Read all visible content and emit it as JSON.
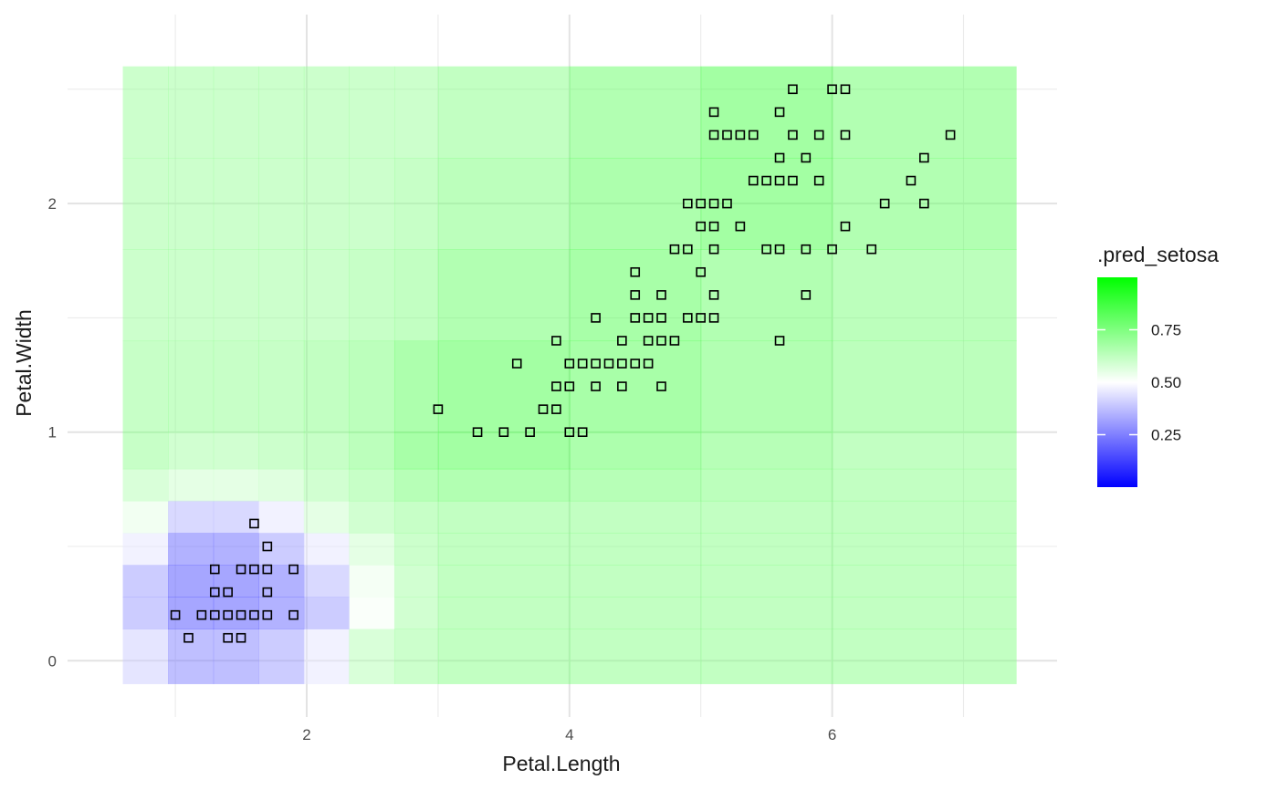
{
  "chart_data": {
    "type": "heatmap",
    "xlabel": "Petal.Length",
    "ylabel": "Petal.Width",
    "x_ticks": [
      2,
      4,
      6
    ],
    "y_ticks": [
      0,
      1,
      2
    ],
    "xlim": [
      0.53,
      7.47
    ],
    "ylim": [
      -0.19,
      2.68
    ],
    "grid": true,
    "legend": {
      "title": ".pred_setosa",
      "position": "right",
      "ticks": [
        0.25,
        0.5,
        0.75
      ],
      "tick_labels": [
        "0.25",
        "0.50",
        "0.75"
      ],
      "range": [
        0.0,
        1.0
      ],
      "colors": {
        "low": "#0000ff",
        "mid": "#ffffff",
        "high": "#00ff00"
      }
    },
    "grid_cells": {
      "x_breaks": [
        0.6,
        0.944,
        1.289,
        1.633,
        1.978,
        2.322,
        2.667,
        3.0,
        4.0,
        5.0,
        6.0,
        7.4
      ],
      "y_breaks": [
        -0.1,
        0.14,
        0.28,
        0.42,
        0.56,
        0.7,
        0.84,
        1.0,
        1.4,
        1.8,
        2.2,
        2.6
      ],
      "values": [
        [
          0.4,
          0.25,
          0.25,
          0.3,
          0.45,
          0.65,
          0.7,
          0.74,
          0.74,
          0.74,
          0.74
        ],
        [
          0.3,
          0.15,
          0.15,
          0.2,
          0.3,
          0.52,
          0.68,
          0.74,
          0.74,
          0.74,
          0.74
        ],
        [
          0.3,
          0.15,
          0.15,
          0.2,
          0.35,
          0.54,
          0.68,
          0.74,
          0.74,
          0.74,
          0.74
        ],
        [
          0.45,
          0.2,
          0.2,
          0.3,
          0.45,
          0.6,
          0.7,
          0.74,
          0.74,
          0.74,
          0.74
        ],
        [
          0.55,
          0.35,
          0.35,
          0.45,
          0.6,
          0.68,
          0.72,
          0.74,
          0.74,
          0.74,
          0.74
        ],
        [
          0.65,
          0.6,
          0.6,
          0.62,
          0.68,
          0.72,
          0.78,
          0.8,
          0.78,
          0.76,
          0.74
        ],
        [
          0.72,
          0.68,
          0.68,
          0.7,
          0.72,
          0.76,
          0.84,
          0.86,
          0.82,
          0.78,
          0.74
        ],
        [
          0.72,
          0.72,
          0.72,
          0.72,
          0.74,
          0.76,
          0.82,
          0.86,
          0.84,
          0.8,
          0.76
        ],
        [
          0.7,
          0.7,
          0.7,
          0.7,
          0.7,
          0.72,
          0.74,
          0.8,
          0.84,
          0.8,
          0.76
        ],
        [
          0.7,
          0.7,
          0.7,
          0.7,
          0.7,
          0.7,
          0.72,
          0.76,
          0.82,
          0.86,
          0.8
        ],
        [
          0.7,
          0.7,
          0.7,
          0.7,
          0.7,
          0.7,
          0.7,
          0.74,
          0.8,
          0.86,
          0.8
        ]
      ]
    },
    "points": [
      [
        1.1,
        0.1
      ],
      [
        1.4,
        0.1
      ],
      [
        1.5,
        0.1
      ],
      [
        1.0,
        0.2
      ],
      [
        1.2,
        0.2
      ],
      [
        1.3,
        0.2
      ],
      [
        1.4,
        0.2
      ],
      [
        1.5,
        0.2
      ],
      [
        1.6,
        0.2
      ],
      [
        1.7,
        0.2
      ],
      [
        1.9,
        0.2
      ],
      [
        1.3,
        0.3
      ],
      [
        1.4,
        0.3
      ],
      [
        1.7,
        0.3
      ],
      [
        1.3,
        0.4
      ],
      [
        1.5,
        0.4
      ],
      [
        1.6,
        0.4
      ],
      [
        1.7,
        0.4
      ],
      [
        1.9,
        0.4
      ],
      [
        1.7,
        0.5
      ],
      [
        1.6,
        0.6
      ],
      [
        3.0,
        1.1
      ],
      [
        3.3,
        1.0
      ],
      [
        3.5,
        1.0
      ],
      [
        3.7,
        1.0
      ],
      [
        4.0,
        1.0
      ],
      [
        4.1,
        1.0
      ],
      [
        3.8,
        1.1
      ],
      [
        3.9,
        1.1
      ],
      [
        3.9,
        1.2
      ],
      [
        4.0,
        1.2
      ],
      [
        4.2,
        1.2
      ],
      [
        4.4,
        1.2
      ],
      [
        4.7,
        1.2
      ],
      [
        3.6,
        1.3
      ],
      [
        4.0,
        1.3
      ],
      [
        4.1,
        1.3
      ],
      [
        4.2,
        1.3
      ],
      [
        4.3,
        1.3
      ],
      [
        4.4,
        1.3
      ],
      [
        4.5,
        1.3
      ],
      [
        4.6,
        1.3
      ],
      [
        3.9,
        1.4
      ],
      [
        4.4,
        1.4
      ],
      [
        4.6,
        1.4
      ],
      [
        4.7,
        1.4
      ],
      [
        4.8,
        1.4
      ],
      [
        5.6,
        1.4
      ],
      [
        4.2,
        1.5
      ],
      [
        4.5,
        1.5
      ],
      [
        4.6,
        1.5
      ],
      [
        4.7,
        1.5
      ],
      [
        4.9,
        1.5
      ],
      [
        5.0,
        1.5
      ],
      [
        5.1,
        1.5
      ],
      [
        4.5,
        1.6
      ],
      [
        4.7,
        1.6
      ],
      [
        5.1,
        1.6
      ],
      [
        5.8,
        1.6
      ],
      [
        4.5,
        1.7
      ],
      [
        5.0,
        1.7
      ],
      [
        4.8,
        1.8
      ],
      [
        4.9,
        1.8
      ],
      [
        5.1,
        1.8
      ],
      [
        5.5,
        1.8
      ],
      [
        5.6,
        1.8
      ],
      [
        5.8,
        1.8
      ],
      [
        6.0,
        1.8
      ],
      [
        6.3,
        1.8
      ],
      [
        5.0,
        1.9
      ],
      [
        5.1,
        1.9
      ],
      [
        5.3,
        1.9
      ],
      [
        6.1,
        1.9
      ],
      [
        4.9,
        2.0
      ],
      [
        5.0,
        2.0
      ],
      [
        5.1,
        2.0
      ],
      [
        5.2,
        2.0
      ],
      [
        6.4,
        2.0
      ],
      [
        6.7,
        2.0
      ],
      [
        5.4,
        2.1
      ],
      [
        5.5,
        2.1
      ],
      [
        5.6,
        2.1
      ],
      [
        5.7,
        2.1
      ],
      [
        5.9,
        2.1
      ],
      [
        6.6,
        2.1
      ],
      [
        5.6,
        2.2
      ],
      [
        5.8,
        2.2
      ],
      [
        6.7,
        2.2
      ],
      [
        5.1,
        2.3
      ],
      [
        5.2,
        2.3
      ],
      [
        5.3,
        2.3
      ],
      [
        5.4,
        2.3
      ],
      [
        5.7,
        2.3
      ],
      [
        5.9,
        2.3
      ],
      [
        6.1,
        2.3
      ],
      [
        6.9,
        2.3
      ],
      [
        5.1,
        2.4
      ],
      [
        5.6,
        2.4
      ],
      [
        5.7,
        2.5
      ],
      [
        6.0,
        2.5
      ],
      [
        6.1,
        2.5
      ]
    ]
  }
}
